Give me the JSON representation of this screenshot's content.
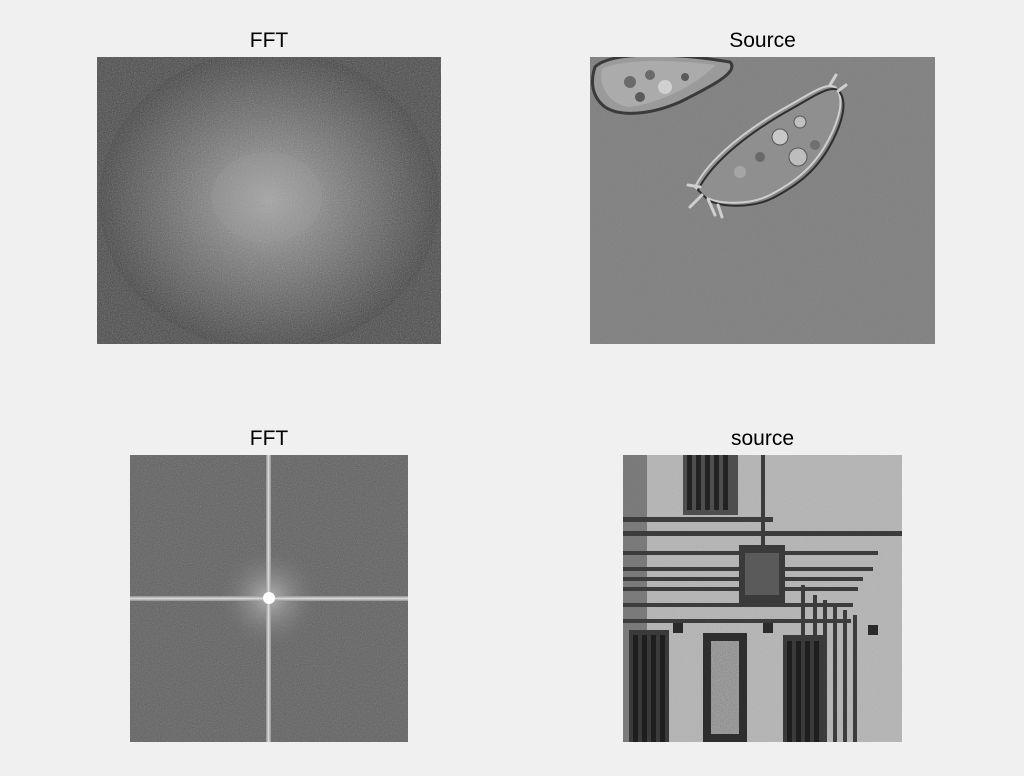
{
  "figure": {
    "panels": [
      {
        "title": "FFT"
      },
      {
        "title": "Source"
      },
      {
        "title": "FFT"
      },
      {
        "title": "source"
      }
    ]
  }
}
